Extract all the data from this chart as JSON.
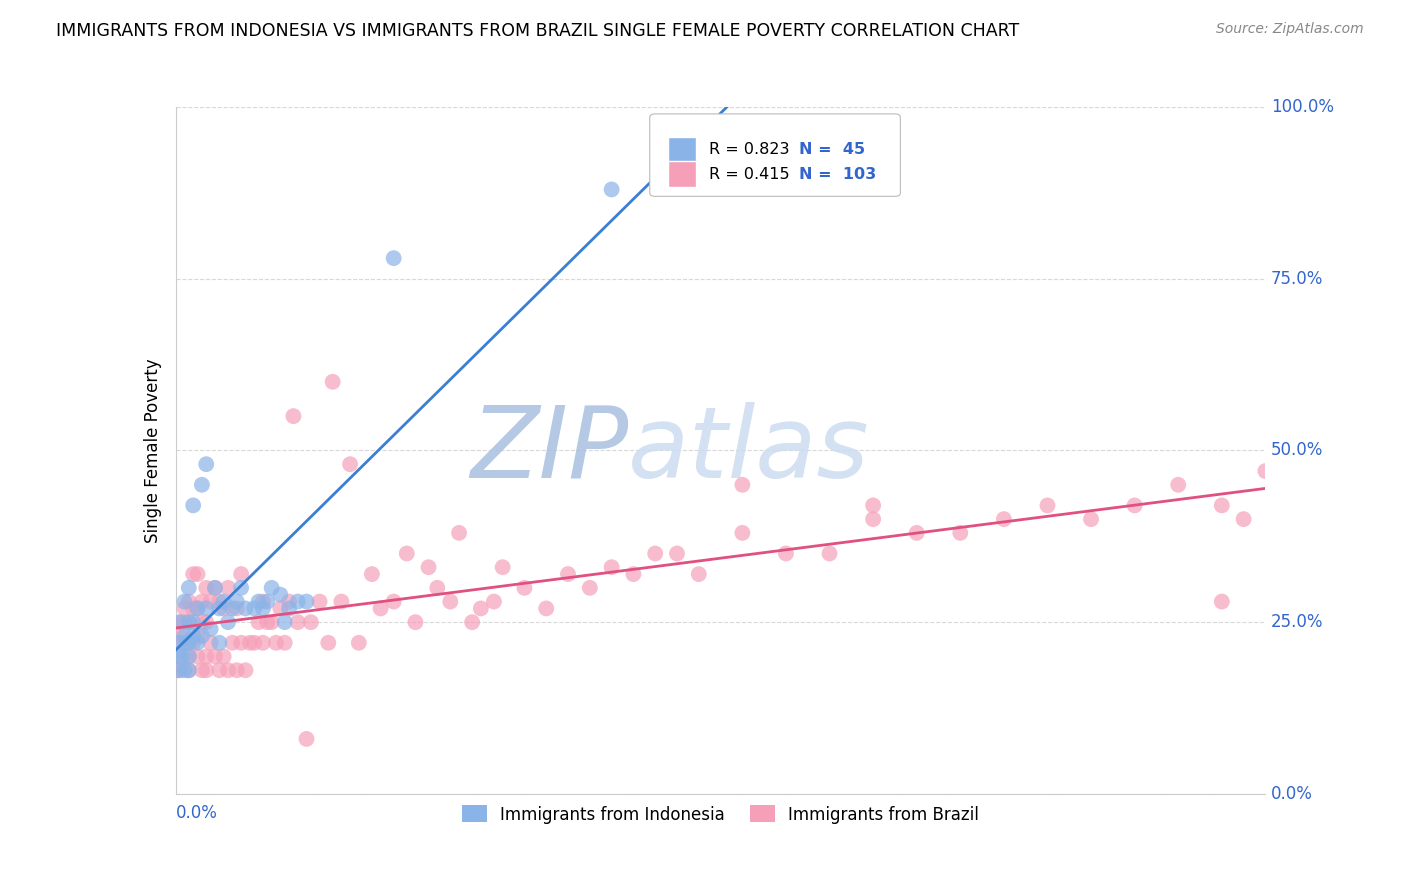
{
  "title": "IMMIGRANTS FROM INDONESIA VS IMMIGRANTS FROM BRAZIL SINGLE FEMALE POVERTY CORRELATION CHART",
  "source": "Source: ZipAtlas.com",
  "ylabel": "Single Female Poverty",
  "legend_indonesia": "Immigrants from Indonesia",
  "legend_brazil": "Immigrants from Brazil",
  "R_indonesia": 0.823,
  "N_indonesia": 45,
  "R_brazil": 0.415,
  "N_brazil": 103,
  "color_indonesia": "#8ab4e8",
  "color_brazil": "#f5a0b8",
  "color_line_indonesia": "#3a7fd4",
  "color_line_brazil": "#e05080",
  "color_text_blue": "#3366cc",
  "color_watermark_zip": "#b0c8e8",
  "color_watermark_atlas": "#c8d8f0",
  "background_color": "#ffffff",
  "grid_color": "#d8d8d8",
  "xlim": [
    0.0,
    0.25
  ],
  "ylim": [
    0.0,
    1.0
  ],
  "yaxis_labels": [
    "0.0%",
    "25.0%",
    "50.0%",
    "75.0%",
    "100.0%"
  ],
  "yaxis_values": [
    0.0,
    0.25,
    0.5,
    0.75,
    1.0
  ],
  "indonesia_x": [
    0.0005,
    0.001,
    0.001,
    0.001,
    0.0015,
    0.002,
    0.002,
    0.002,
    0.0025,
    0.003,
    0.003,
    0.003,
    0.003,
    0.003,
    0.004,
    0.004,
    0.004,
    0.005,
    0.005,
    0.006,
    0.006,
    0.007,
    0.007,
    0.008,
    0.009,
    0.01,
    0.01,
    0.011,
    0.012,
    0.013,
    0.014,
    0.015,
    0.016,
    0.018,
    0.019,
    0.02,
    0.021,
    0.022,
    0.024,
    0.025,
    0.026,
    0.028,
    0.03,
    0.05,
    0.1
  ],
  "indonesia_y": [
    0.18,
    0.2,
    0.22,
    0.25,
    0.2,
    0.23,
    0.28,
    0.18,
    0.22,
    0.2,
    0.25,
    0.3,
    0.22,
    0.18,
    0.23,
    0.25,
    0.42,
    0.27,
    0.22,
    0.45,
    0.23,
    0.27,
    0.48,
    0.24,
    0.3,
    0.27,
    0.22,
    0.28,
    0.25,
    0.27,
    0.28,
    0.3,
    0.27,
    0.27,
    0.28,
    0.27,
    0.28,
    0.3,
    0.29,
    0.25,
    0.27,
    0.28,
    0.28,
    0.78,
    0.88
  ],
  "brazil_x": [
    0.0005,
    0.001,
    0.001,
    0.001,
    0.001,
    0.002,
    0.002,
    0.002,
    0.003,
    0.003,
    0.003,
    0.003,
    0.003,
    0.004,
    0.004,
    0.004,
    0.005,
    0.005,
    0.005,
    0.005,
    0.006,
    0.006,
    0.006,
    0.007,
    0.007,
    0.007,
    0.007,
    0.008,
    0.008,
    0.009,
    0.009,
    0.01,
    0.01,
    0.011,
    0.011,
    0.012,
    0.012,
    0.013,
    0.014,
    0.014,
    0.015,
    0.015,
    0.016,
    0.017,
    0.018,
    0.019,
    0.02,
    0.02,
    0.021,
    0.022,
    0.023,
    0.024,
    0.025,
    0.026,
    0.027,
    0.028,
    0.03,
    0.031,
    0.033,
    0.035,
    0.036,
    0.038,
    0.04,
    0.042,
    0.045,
    0.047,
    0.05,
    0.053,
    0.055,
    0.058,
    0.06,
    0.063,
    0.065,
    0.068,
    0.07,
    0.073,
    0.075,
    0.08,
    0.085,
    0.09,
    0.095,
    0.1,
    0.105,
    0.11,
    0.115,
    0.12,
    0.13,
    0.14,
    0.15,
    0.16,
    0.17,
    0.18,
    0.19,
    0.2,
    0.21,
    0.22,
    0.23,
    0.24,
    0.24,
    0.245,
    0.25,
    0.13,
    0.16
  ],
  "brazil_y": [
    0.18,
    0.2,
    0.23,
    0.25,
    0.18,
    0.22,
    0.25,
    0.27,
    0.18,
    0.22,
    0.25,
    0.28,
    0.2,
    0.22,
    0.27,
    0.32,
    0.2,
    0.23,
    0.27,
    0.32,
    0.18,
    0.25,
    0.28,
    0.2,
    0.25,
    0.3,
    0.18,
    0.22,
    0.28,
    0.2,
    0.3,
    0.18,
    0.28,
    0.2,
    0.27,
    0.18,
    0.3,
    0.22,
    0.18,
    0.27,
    0.22,
    0.32,
    0.18,
    0.22,
    0.22,
    0.25,
    0.22,
    0.28,
    0.25,
    0.25,
    0.22,
    0.27,
    0.22,
    0.28,
    0.55,
    0.25,
    0.08,
    0.25,
    0.28,
    0.22,
    0.6,
    0.28,
    0.48,
    0.22,
    0.32,
    0.27,
    0.28,
    0.35,
    0.25,
    0.33,
    0.3,
    0.28,
    0.38,
    0.25,
    0.27,
    0.28,
    0.33,
    0.3,
    0.27,
    0.32,
    0.3,
    0.33,
    0.32,
    0.35,
    0.35,
    0.32,
    0.38,
    0.35,
    0.35,
    0.4,
    0.38,
    0.38,
    0.4,
    0.42,
    0.4,
    0.42,
    0.45,
    0.42,
    0.28,
    0.4,
    0.47,
    0.45,
    0.42
  ]
}
